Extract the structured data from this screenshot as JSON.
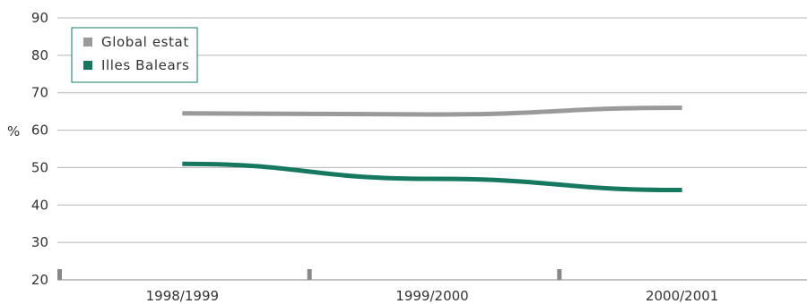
{
  "chart_data": {
    "type": "line",
    "ylabel": "%",
    "ylim": [
      20,
      90
    ],
    "yticks": [
      20,
      30,
      40,
      50,
      60,
      70,
      80,
      90
    ],
    "categories": [
      "1998/1999",
      "1999/2000",
      "2000/2001"
    ],
    "grid": true,
    "legend_position": "top-left",
    "series": [
      {
        "name": "Global estat",
        "color": "#9a9a9a",
        "values": [
          64.5,
          64.2,
          66.0
        ]
      },
      {
        "name": "Illes Balears",
        "color": "#16785f",
        "values": [
          51.0,
          47.0,
          44.0
        ]
      }
    ],
    "axis_color": "#888888",
    "grid_color": "#b5b5b5"
  }
}
